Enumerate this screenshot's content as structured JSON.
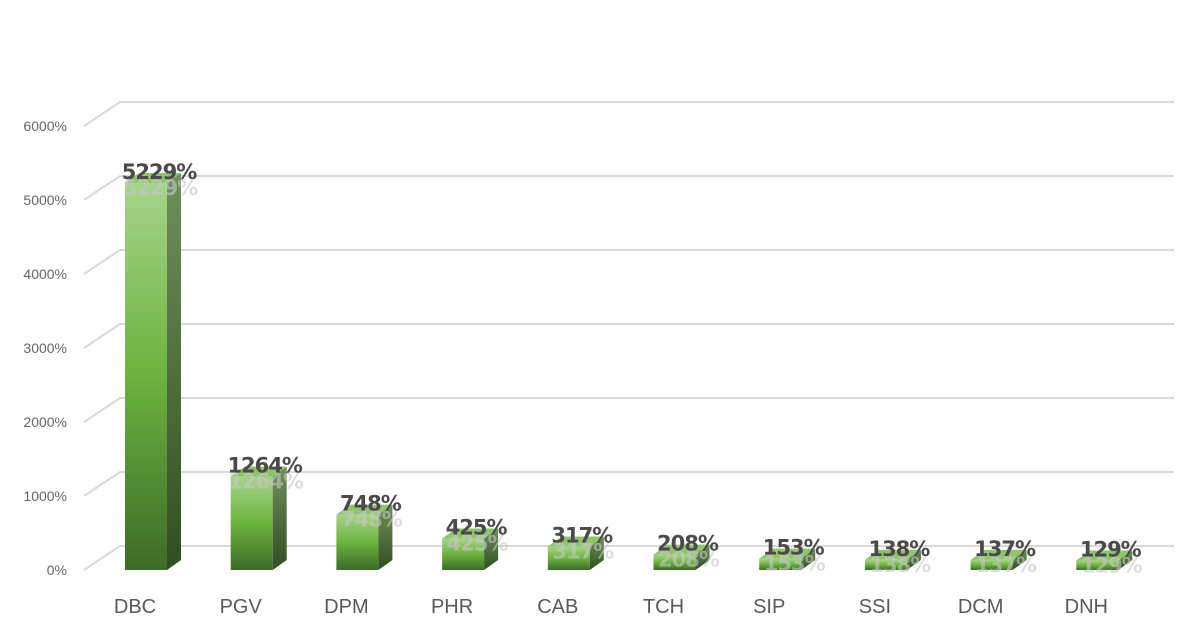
{
  "chart_data": {
    "type": "bar",
    "style": "3d-column",
    "categories": [
      "DBC",
      "PGV",
      "DPM",
      "PHR",
      "CAB",
      "TCH",
      "SIP",
      "SSI",
      "DCM",
      "DNH"
    ],
    "values": [
      5229,
      1264,
      748,
      425,
      317,
      208,
      153,
      138,
      137,
      129
    ],
    "data_labels": [
      "5229%",
      "1264%",
      "748%",
      "425%",
      "317%",
      "208%",
      "153%",
      "138%",
      "137%",
      "129%"
    ],
    "y_ticks": [
      "0%",
      "1000%",
      "2000%",
      "3000%",
      "4000%",
      "5000%",
      "6000%"
    ],
    "ylim": [
      0,
      6000
    ],
    "grid": true,
    "legend": "none",
    "colors": {
      "bar_light": "#a7d48a",
      "bar_mid": "#6cb33f",
      "bar_dark": "#3d6b28",
      "side_dark": "#3a5e2a",
      "top": "#8fc46c",
      "grid": "#d9d9d9"
    }
  }
}
